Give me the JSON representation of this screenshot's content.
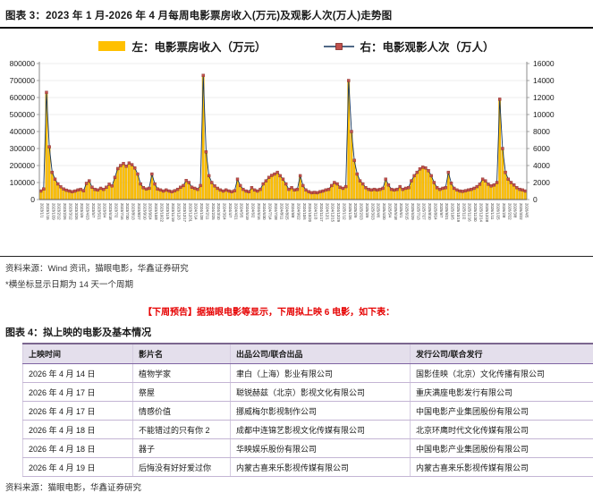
{
  "figure3": {
    "title": "图表 3：2023 年 1 月-2026 年 4 月每周电影票房收入(万元)及观影人次(万人)走势图",
    "legend": [
      {
        "label": "左：电影票房收入（万元）",
        "swatch": "bar",
        "color": "#FFC000"
      },
      {
        "label": "右：电影观影人次（万人）",
        "swatch": "line-marker",
        "line_color": "#17375E",
        "marker_color": "#C0504D"
      }
    ],
    "source": "资料来源：Wind 资讯，猫眼电影，华鑫证券研究",
    "footnote": "*横坐标显示日期为 14 天一个周期"
  },
  "announcement": "【下周预告】据猫眼电影等显示，下周拟上映 6 电影，如下表：",
  "figure4": {
    "title": "图表 4：拟上映的电影及基本情况",
    "columns": [
      "上映时间",
      "影片名",
      "出品公司/联合出品",
      "发行公司/联合发行"
    ],
    "rows": [
      [
        "2026 年 4 月 14 日",
        "植物学家",
        "聿白（上海）影业有限公司",
        "国影佳映（北京）文化传播有限公司"
      ],
      [
        "2026 年 4 月 17 日",
        "祭屋",
        "聪锐赫兹（北京）影视文化有限公司",
        "重庆满座电影发行有限公司"
      ],
      [
        "2026 年 4 月 17 日",
        "情感价值",
        "挪威梅尔影视制作公司",
        "中国电影产业集团股份有限公司"
      ],
      [
        "2026 年 4 月 18 日",
        "不能错过的只有你 2",
        "成都中连锦艺影视文化传媒有限公司",
        "北京环鹰时代文化传媒有限公司"
      ],
      [
        "2026 年 4 月 18 日",
        "器子",
        "华映娱乐股份有限公司",
        "中国电影产业集团股份有限公司"
      ],
      [
        "2026 年 4 月 19 日",
        "后悔没有好好爱过你",
        "内蒙古喜来乐影视传媒有限公司",
        "内蒙古喜来乐影视传媒有限公司"
      ]
    ],
    "source": "资料来源：猫眼电影，华鑫证券研究"
  },
  "chart_data": {
    "type": "bar+line",
    "title": "2023年1月-2026年4月每周电影票房收入(万元)及观影人次(万人)走势图",
    "x_start_date": "2023-01-01",
    "x_interval_days": 7,
    "x_tick_every_n_points": 2,
    "x_tick_label_format": "YYYY/M/D",
    "grid": true,
    "legend_position": "top",
    "left_axis": {
      "label": "电影票房收入（万元）",
      "min": 0,
      "max": 800000,
      "step": 100000
    },
    "right_axis": {
      "label": "电影观影人次（万人）",
      "min": 0,
      "max": 16000,
      "step": 2000
    },
    "series": [
      {
        "name": "左：电影票房收入（万元）",
        "kind": "bar",
        "axis": "left",
        "color": "#FFC000",
        "values": [
          50000,
          62000,
          630000,
          310000,
          160000,
          120000,
          92000,
          75000,
          62000,
          55000,
          50000,
          46000,
          50000,
          56000,
          60000,
          52000,
          95000,
          110000,
          72000,
          60000,
          56000,
          66000,
          60000,
          72000,
          90000,
          80000,
          130000,
          182000,
          200000,
          212000,
          196000,
          215000,
          205000,
          186000,
          150000,
          92000,
          70000,
          62000,
          66000,
          150000,
          92000,
          62000,
          56000,
          50000,
          56000,
          50000,
          46000,
          52000,
          60000,
          72000,
          82000,
          112000,
          100000,
          72000,
          66000,
          60000,
          82000,
          730000,
          280000,
          140000,
          100000,
          80000,
          66000,
          56000,
          50000,
          56000,
          50000,
          46000,
          52000,
          120000,
          82000,
          60000,
          50000,
          46000,
          70000,
          56000,
          50000,
          60000,
          92000,
          110000,
          130000,
          142000,
          150000,
          160000,
          140000,
          120000,
          92000,
          60000,
          70000,
          56000,
          60000,
          140000,
          82000,
          56000,
          46000,
          40000,
          42000,
          40000,
          46000,
          50000,
          56000,
          60000,
          82000,
          100000,
          92000,
          72000,
          66000,
          76000,
          700000,
          400000,
          230000,
          150000,
          110000,
          92000,
          70000,
          60000,
          56000,
          60000,
          56000,
          60000,
          66000,
          120000,
          86000,
          60000,
          56000,
          60000,
          76000,
          60000,
          66000,
          70000,
          110000,
          140000,
          160000,
          180000,
          190000,
          186000,
          170000,
          140000,
          100000,
          70000,
          60000,
          66000,
          70000,
          160000,
          96000,
          66000,
          56000,
          50000,
          48000,
          52000,
          56000,
          60000,
          66000,
          76000,
          90000,
          120000,
          110000,
          90000,
          80000,
          86000,
          100000,
          590000,
          300000,
          160000,
          120000,
          100000,
          86000,
          70000,
          60000,
          56000,
          50000
        ]
      },
      {
        "name": "右：电影观影人次（万人）",
        "kind": "line",
        "axis": "right",
        "color": "#17375E",
        "marker_color": "#C0504D",
        "values": [
          1000,
          1240,
          12600,
          6200,
          3200,
          2400,
          1840,
          1500,
          1240,
          1100,
          1000,
          920,
          1000,
          1120,
          1200,
          1040,
          1900,
          2200,
          1440,
          1200,
          1120,
          1320,
          1200,
          1440,
          1800,
          1600,
          2600,
          3640,
          4000,
          4240,
          3920,
          4300,
          4100,
          3720,
          3000,
          1840,
          1400,
          1240,
          1320,
          3000,
          1840,
          1240,
          1120,
          1000,
          1120,
          1000,
          920,
          1040,
          1200,
          1440,
          1640,
          2240,
          2000,
          1440,
          1320,
          1200,
          1640,
          14600,
          5600,
          2800,
          2000,
          1600,
          1320,
          1120,
          1000,
          1120,
          1000,
          920,
          1040,
          2400,
          1640,
          1200,
          1000,
          920,
          1400,
          1120,
          1000,
          1200,
          1840,
          2200,
          2600,
          2840,
          3000,
          3200,
          2800,
          2400,
          1840,
          1200,
          1400,
          1120,
          1200,
          2800,
          1640,
          1120,
          920,
          800,
          840,
          800,
          920,
          1000,
          1120,
          1200,
          1640,
          2000,
          1840,
          1440,
          1320,
          1520,
          14000,
          8000,
          4600,
          3000,
          2200,
          1840,
          1400,
          1200,
          1120,
          1200,
          1120,
          1200,
          1320,
          2400,
          1720,
          1200,
          1120,
          1200,
          1520,
          1200,
          1320,
          1400,
          2200,
          2800,
          3200,
          3600,
          3800,
          3720,
          3400,
          2800,
          2000,
          1400,
          1200,
          1320,
          1400,
          3200,
          1920,
          1320,
          1120,
          1000,
          960,
          1040,
          1120,
          1200,
          1320,
          1520,
          1800,
          2400,
          2200,
          1800,
          1600,
          1720,
          2000,
          11800,
          6000,
          3200,
          2400,
          2000,
          1720,
          1400,
          1200,
          1120,
          1000
        ]
      }
    ]
  }
}
